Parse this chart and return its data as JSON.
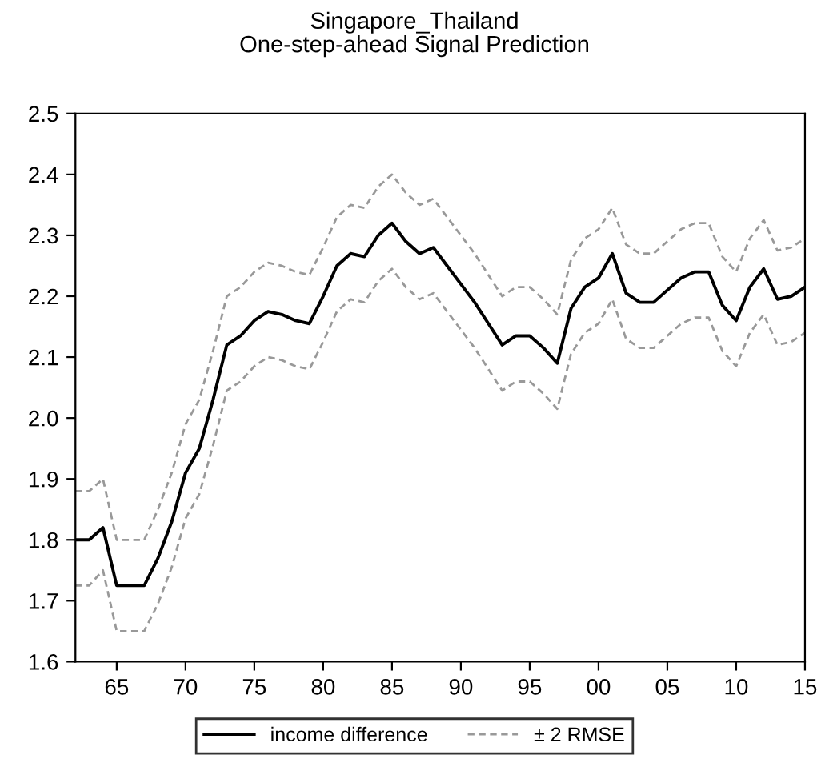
{
  "chart_data": {
    "type": "line",
    "title": "Singapore_Thailand\nOne-step-ahead Signal Prediction",
    "x": [
      1962,
      1963,
      1964,
      1965,
      1966,
      1967,
      1968,
      1969,
      1970,
      1971,
      1972,
      1973,
      1974,
      1975,
      1976,
      1977,
      1978,
      1979,
      1980,
      1981,
      1982,
      1983,
      1984,
      1985,
      1986,
      1987,
      1988,
      1989,
      1990,
      1991,
      1992,
      1993,
      1994,
      1995,
      1996,
      1997,
      1998,
      1999,
      2000,
      2001,
      2002,
      2003,
      2004,
      2005,
      2006,
      2007,
      2008,
      2009,
      2010,
      2011,
      2012,
      2013,
      2014,
      2015
    ],
    "series": [
      {
        "name": "income difference",
        "color": "#000000",
        "line_style": "solid",
        "values": [
          1.8,
          1.8,
          1.82,
          1.725,
          1.725,
          1.725,
          1.77,
          1.83,
          1.91,
          1.95,
          2.03,
          2.12,
          2.135,
          2.16,
          2.175,
          2.17,
          2.16,
          2.155,
          2.2,
          2.25,
          2.27,
          2.265,
          2.3,
          2.32,
          2.29,
          2.27,
          2.28,
          2.25,
          2.22,
          2.19,
          2.155,
          2.12,
          2.135,
          2.135,
          2.115,
          2.09,
          2.18,
          2.215,
          2.23,
          2.27,
          2.205,
          2.19,
          2.19,
          2.21,
          2.23,
          2.24,
          2.24,
          2.185,
          2.16,
          2.215,
          2.245,
          2.195,
          2.2,
          2.215
        ]
      },
      {
        "name": "± 2 RMSE",
        "color": "#999999",
        "line_style": "dashed",
        "values": [
          1.88,
          1.88,
          1.9,
          1.8,
          1.8,
          1.8,
          1.85,
          1.91,
          1.99,
          2.03,
          2.11,
          2.2,
          2.215,
          2.24,
          2.255,
          2.25,
          2.24,
          2.235,
          2.28,
          2.33,
          2.35,
          2.345,
          2.38,
          2.4,
          2.37,
          2.35,
          2.36,
          2.33,
          2.3,
          2.27,
          2.235,
          2.2,
          2.215,
          2.215,
          2.195,
          2.17,
          2.26,
          2.295,
          2.31,
          2.345,
          2.285,
          2.27,
          2.27,
          2.29,
          2.31,
          2.32,
          2.32,
          2.265,
          2.24,
          2.295,
          2.325,
          2.275,
          2.28,
          2.295
        ]
      },
      {
        "color": "#999999",
        "line_style": "dashed",
        "values": [
          1.725,
          1.725,
          1.75,
          1.65,
          1.65,
          1.65,
          1.695,
          1.755,
          1.835,
          1.875,
          1.955,
          2.045,
          2.06,
          2.085,
          2.1,
          2.095,
          2.085,
          2.08,
          2.125,
          2.175,
          2.195,
          2.19,
          2.225,
          2.245,
          2.215,
          2.195,
          2.205,
          2.175,
          2.145,
          2.115,
          2.08,
          2.045,
          2.06,
          2.06,
          2.04,
          2.015,
          2.105,
          2.14,
          2.155,
          2.195,
          2.13,
          2.115,
          2.115,
          2.135,
          2.155,
          2.165,
          2.165,
          2.11,
          2.085,
          2.14,
          2.17,
          2.12,
          2.125,
          2.14
        ]
      }
    ],
    "xlim": [
      1962,
      2015
    ],
    "xticks": [
      {
        "value": 1965,
        "label": "65"
      },
      {
        "value": 1970,
        "label": "70"
      },
      {
        "value": 1975,
        "label": "75"
      },
      {
        "value": 1980,
        "label": "80"
      },
      {
        "value": 1985,
        "label": "85"
      },
      {
        "value": 1990,
        "label": "90"
      },
      {
        "value": 1995,
        "label": "95"
      },
      {
        "value": 2000,
        "label": "00"
      },
      {
        "value": 2005,
        "label": "05"
      },
      {
        "value": 2010,
        "label": "10"
      },
      {
        "value": 2015,
        "label": "15"
      }
    ],
    "ylim": [
      1.6,
      2.5
    ],
    "yticks": [
      {
        "value": 1.6,
        "label": "1.6"
      },
      {
        "value": 1.7,
        "label": "1.7"
      },
      {
        "value": 1.8,
        "label": "1.8"
      },
      {
        "value": 1.9,
        "label": "1.9"
      },
      {
        "value": 2.0,
        "label": "2.0"
      },
      {
        "value": 2.1,
        "label": "2.1"
      },
      {
        "value": 2.2,
        "label": "2.2"
      },
      {
        "value": 2.3,
        "label": "2.3"
      },
      {
        "value": 2.4,
        "label": "2.4"
      },
      {
        "value": 2.5,
        "label": "2.5"
      }
    ],
    "grid": false,
    "legend": "bottom",
    "marker": "none"
  }
}
